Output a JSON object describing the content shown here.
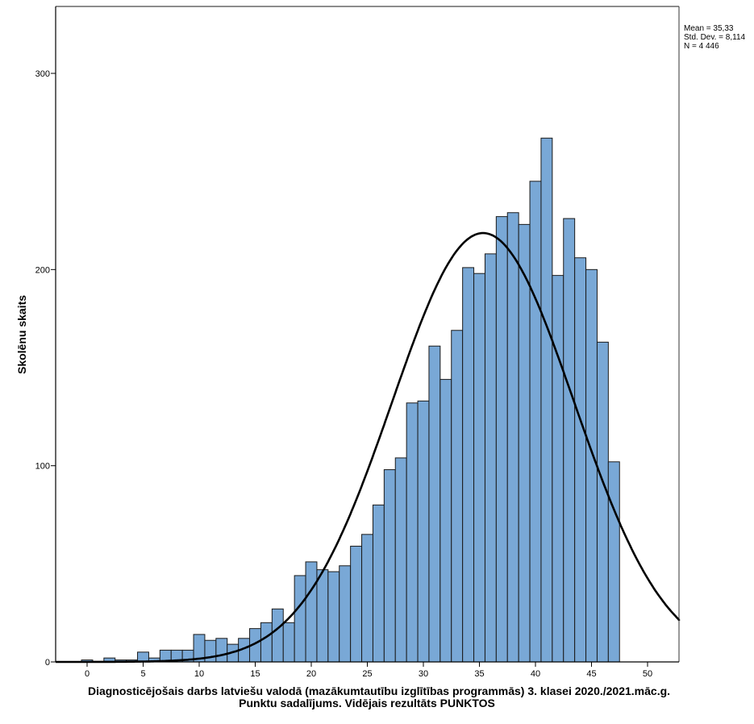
{
  "chart_data": {
    "type": "bar",
    "subtype": "histogram-with-normal-curve",
    "title": "",
    "xlabel": "Diagnosticējošais darbs latviešu valodā (mazākumtautību izglītības programmās) 3. klasei 2020./2021.māc.g.",
    "xlabel_line2": "Punktu sadalījums. Vidējais rezultāts PUNKTOS",
    "ylabel": "Skolēnu skaits",
    "xlim": [
      -3,
      53
    ],
    "ylim": [
      0,
      330
    ],
    "xticks": [
      0,
      5,
      10,
      15,
      20,
      25,
      30,
      35,
      40,
      45,
      50
    ],
    "yticks": [
      0,
      100,
      200,
      300
    ],
    "bin_width": 1,
    "x": [
      0,
      1,
      2,
      3,
      4,
      5,
      6,
      7,
      8,
      9,
      10,
      11,
      12,
      13,
      14,
      15,
      16,
      17,
      18,
      19,
      20,
      21,
      22,
      23,
      24,
      25,
      26,
      27,
      28,
      29,
      30,
      31,
      32,
      33,
      34,
      35,
      36,
      37,
      38,
      39,
      40,
      41,
      42,
      43,
      44,
      45,
      46,
      47
    ],
    "values": [
      1,
      0,
      2,
      1,
      1,
      5,
      2,
      6,
      6,
      6,
      14,
      11,
      12,
      9,
      12,
      17,
      20,
      27,
      20,
      44,
      51,
      47,
      46,
      49,
      59,
      65,
      80,
      98,
      104,
      132,
      133,
      161,
      144,
      169,
      201,
      198,
      208,
      227,
      229,
      223,
      245,
      267,
      197,
      226,
      206,
      200,
      163,
      102
    ],
    "normal_curve": {
      "mean": 35.33,
      "std_dev": 8.114,
      "n": 4446
    },
    "bar_color": "#79a8d6",
    "bar_edge_color": "#1a1a1a",
    "curve_color": "#000000",
    "grid": false,
    "legend": "none",
    "stats": {
      "mean_label": "Mean = 35,33",
      "std_label": "Std. Dev. = 8,114",
      "n_label": "N = 4 446"
    }
  }
}
